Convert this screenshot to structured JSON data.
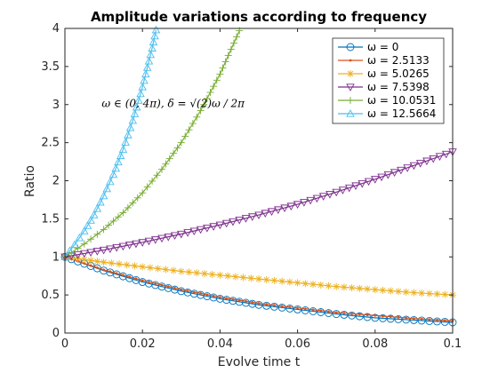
{
  "chart_data": {
    "type": "line",
    "title": "Amplitude variations according to frequency",
    "xlabel": "Evolve time t",
    "ylabel": "Ratio",
    "xlim": [
      0,
      0.1
    ],
    "ylim": [
      0,
      4
    ],
    "xticks": [
      0,
      0.02,
      0.04,
      0.06,
      0.08,
      0.1
    ],
    "xtick_labels": [
      "0",
      "0.02",
      "0.04",
      "0.06",
      "0.08",
      "0.1"
    ],
    "yticks": [
      0,
      0.5,
      1,
      1.5,
      2,
      2.5,
      3,
      3.5,
      4
    ],
    "ytick_labels": [
      "0",
      "0.5",
      "1",
      "1.5",
      "2",
      "2.5",
      "3",
      "3.5",
      "4"
    ],
    "grid": false,
    "legend_position": "top-right",
    "annotation": {
      "text": "ω ∈ (0, 4π), δ = √(2)ω / 2π",
      "x": 0.0095,
      "y": 2.97
    },
    "series": [
      {
        "name": "ω = 0",
        "color": "#0072BD",
        "marker": "circle",
        "x": [
          0,
          0.01,
          0.02,
          0.03,
          0.04,
          0.05,
          0.06,
          0.07,
          0.08,
          0.09,
          0.1
        ],
        "y": [
          1.0,
          0.82,
          0.67,
          0.55,
          0.45,
          0.37,
          0.31,
          0.25,
          0.2,
          0.17,
          0.14
        ]
      },
      {
        "name": "ω = 2.5133",
        "color": "#D95319",
        "marker": "point",
        "x": [
          0,
          0.01,
          0.02,
          0.03,
          0.04,
          0.05,
          0.06,
          0.07,
          0.08,
          0.09,
          0.1
        ],
        "y": [
          1.0,
          0.83,
          0.69,
          0.57,
          0.47,
          0.39,
          0.33,
          0.27,
          0.23,
          0.19,
          0.16
        ]
      },
      {
        "name": "ω = 5.0265",
        "color": "#EDB120",
        "marker": "asterisk",
        "x": [
          0,
          0.01,
          0.02,
          0.03,
          0.04,
          0.05,
          0.06,
          0.07,
          0.08,
          0.09,
          0.1
        ],
        "y": [
          1.0,
          0.93,
          0.87,
          0.81,
          0.76,
          0.71,
          0.66,
          0.61,
          0.57,
          0.53,
          0.5
        ]
      },
      {
        "name": "ω = 7.5398",
        "color": "#7E2F8E",
        "marker": "triangle-down",
        "x": [
          0,
          0.01,
          0.02,
          0.03,
          0.04,
          0.05,
          0.06,
          0.07,
          0.08,
          0.09,
          0.1
        ],
        "y": [
          1.0,
          1.09,
          1.19,
          1.3,
          1.42,
          1.55,
          1.69,
          1.85,
          2.02,
          2.2,
          2.38
        ]
      },
      {
        "name": "ω = 10.0531",
        "color": "#77AC30",
        "marker": "plus",
        "x": [
          0,
          0.005,
          0.01,
          0.015,
          0.02,
          0.025,
          0.03,
          0.035,
          0.04,
          0.045
        ],
        "y": [
          1.0,
          1.17,
          1.36,
          1.58,
          1.84,
          2.15,
          2.5,
          2.92,
          3.4,
          3.97
        ]
      },
      {
        "name": "ω = 12.5664",
        "color": "#4DBEEE",
        "marker": "triangle-up",
        "x": [
          0,
          0.0025,
          0.005,
          0.0075,
          0.01,
          0.0125,
          0.015,
          0.0175,
          0.02,
          0.0225,
          0.0235
        ],
        "y": [
          1.0,
          1.16,
          1.34,
          1.55,
          1.8,
          2.08,
          2.41,
          2.79,
          3.23,
          3.74,
          3.98
        ]
      }
    ]
  }
}
